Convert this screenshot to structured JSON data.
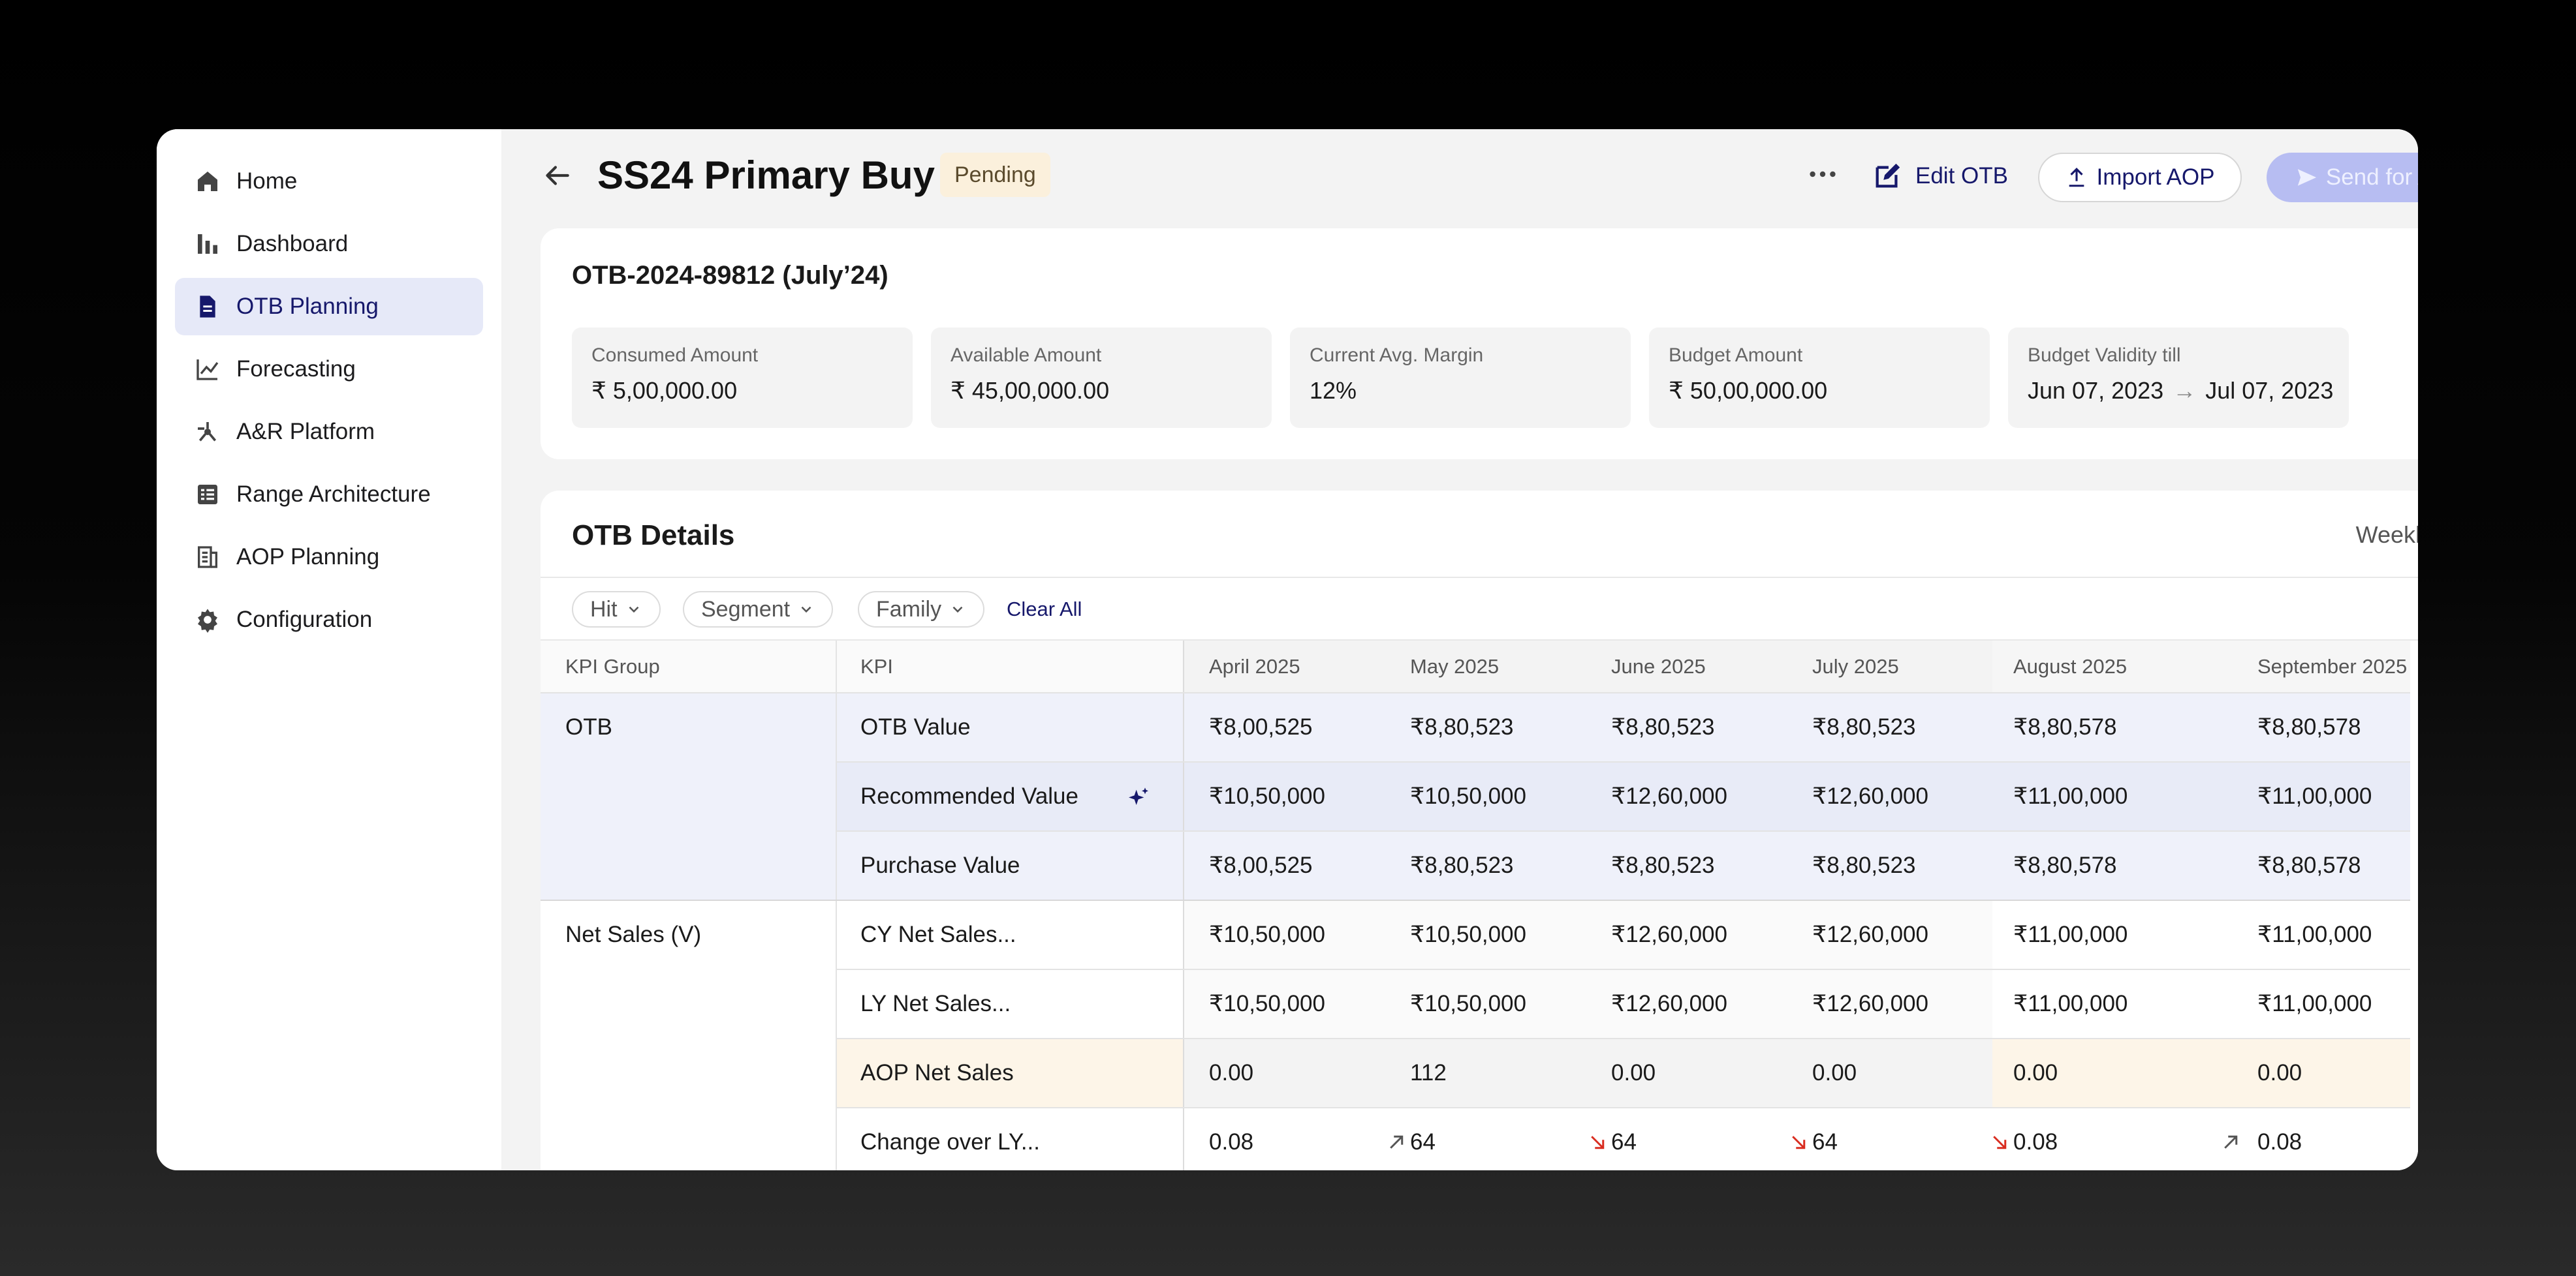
{
  "sidebar": {
    "items": [
      {
        "label": "Home",
        "icon": "home-icon"
      },
      {
        "label": "Dashboard",
        "icon": "bar-chart-icon"
      },
      {
        "label": "OTB Planning",
        "icon": "document-icon",
        "active": true
      },
      {
        "label": "Forecasting",
        "icon": "line-chart-icon"
      },
      {
        "label": "A&R Platform",
        "icon": "network-icon"
      },
      {
        "label": "Range Architecture",
        "icon": "table-icon"
      },
      {
        "label": "AOP Planning",
        "icon": "report-icon"
      },
      {
        "label": "Configuration",
        "icon": "gear-icon"
      }
    ]
  },
  "header": {
    "title": "SS24 Primary Buy",
    "status": "Pending",
    "edit_label": "Edit OTB",
    "import_label": "Import AOP",
    "send_label": "Send for Approval"
  },
  "summary": {
    "otb_id": "OTB-2024-89812 (July’24)",
    "metrics": [
      {
        "label": "Consumed Amount",
        "value": "₹ 5,00,000.00"
      },
      {
        "label": "Available Amount",
        "value": "₹ 45,00,000.00"
      },
      {
        "label": "Current Avg. Margin",
        "value": "12%"
      },
      {
        "label": "Budget Amount",
        "value": "₹ 50,00,000.00"
      }
    ],
    "validity": {
      "label": "Budget Validity till",
      "from": "Jun 07, 2023",
      "to": "Jul 07, 2023"
    }
  },
  "details": {
    "title": "OTB Details",
    "weekly_label": "Weekly",
    "weekly_on": false,
    "filters": [
      "Hit",
      "Segment",
      "Family"
    ],
    "clear_label": "Clear All",
    "columns": {
      "kpi_group": "KPI Group",
      "kpi": "KPI",
      "months": [
        "April 2025",
        "May 2025",
        "June 2025",
        "July 2025",
        "August 2025",
        "September 2025"
      ]
    },
    "groups": {
      "otb": "OTB",
      "net_sales": "Net Sales (V)"
    },
    "rows": [
      {
        "kpi": "OTB Value",
        "values": [
          "₹8,00,525",
          "₹8,80,523",
          "₹8,80,523",
          "₹8,80,523",
          "₹8,80,578",
          "₹8,80,578"
        ]
      },
      {
        "kpi": "Recommended Value",
        "values": [
          "₹10,50,000",
          "₹10,50,000",
          "₹12,60,000",
          "₹12,60,000",
          "₹11,00,000",
          "₹11,00,000"
        ]
      },
      {
        "kpi": "Purchase Value",
        "values": [
          "₹8,00,525",
          "₹8,80,523",
          "₹8,80,523",
          "₹8,80,523",
          "₹8,80,578",
          "₹8,80,578"
        ]
      },
      {
        "kpi": "CY Net Sales...",
        "values": [
          "₹10,50,000",
          "₹10,50,000",
          "₹12,60,000",
          "₹12,60,000",
          "₹11,00,000",
          "₹11,00,000"
        ]
      },
      {
        "kpi": "LY Net Sales...",
        "values": [
          "₹10,50,000",
          "₹10,50,000",
          "₹12,60,000",
          "₹12,60,000",
          "₹11,00,000",
          "₹11,00,000"
        ]
      },
      {
        "kpi": "AOP Net Sales",
        "values": [
          "0.00",
          "112",
          "0.00",
          "0.00",
          "0.00",
          "0.00"
        ]
      },
      {
        "kpi": "Change over LY...",
        "values": [
          "0.08",
          "64",
          "64",
          "64",
          "0.08",
          "0.08"
        ],
        "trends": [
          "up",
          "down",
          "down",
          "down",
          "up",
          ""
        ]
      }
    ]
  },
  "colors": {
    "accent": "#16186b",
    "active_nav_bg": "#e6e9f8",
    "send_button_bg": "#b7bdf2",
    "pending_badge_bg": "#fbf0dc",
    "otb_row_bg": "#eff1fa",
    "aop_row_bg": "#fdf5e8",
    "trend_up": "#555555",
    "trend_down": "#d92d20"
  }
}
